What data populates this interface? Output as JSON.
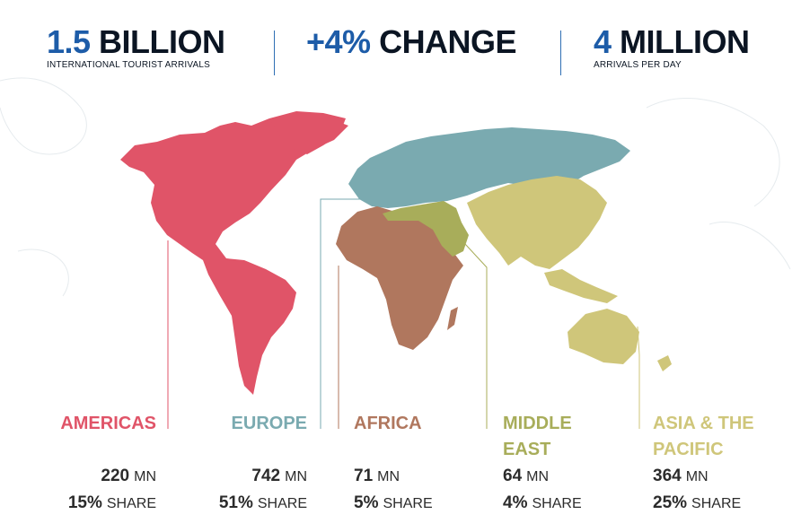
{
  "header": {
    "stats": [
      {
        "value_accent": "1.5",
        "value_rest": " BILLION",
        "label": "INTERNATIONAL TOURIST ARRIVALS"
      },
      {
        "value_accent": "+4%",
        "value_rest": " CHANGE",
        "label": ""
      },
      {
        "value_accent": "4",
        "value_rest": " MILLION",
        "label": "ARRIVALS PER DAY"
      }
    ]
  },
  "colors": {
    "americas": "#e05468",
    "europe": "#7aaab0",
    "africa": "#b0775e",
    "middle_east": "#a8ad5a",
    "asia_pacific": "#cfc67a",
    "accent_blue": "#1d5ca8"
  },
  "regions": [
    {
      "name_line1": "AMERICAS",
      "name_line2": "",
      "value": "220",
      "unit": "MN",
      "share": "15%",
      "share_label": "SHARE"
    },
    {
      "name_line1": "EUROPE",
      "name_line2": "",
      "value": "742",
      "unit": "MN",
      "share": "51%",
      "share_label": "SHARE"
    },
    {
      "name_line1": "AFRICA",
      "name_line2": "",
      "value": "71",
      "unit": "MN",
      "share": "5%",
      "share_label": "SHARE"
    },
    {
      "name_line1": "MIDDLE",
      "name_line2": "EAST",
      "value": "64",
      "unit": "MN",
      "share": "4%",
      "share_label": "SHARE"
    },
    {
      "name_line1": "ASIA & THE",
      "name_line2": "PACIFIC",
      "value": "364",
      "unit": "MN",
      "share": "25%",
      "share_label": "SHARE"
    }
  ]
}
